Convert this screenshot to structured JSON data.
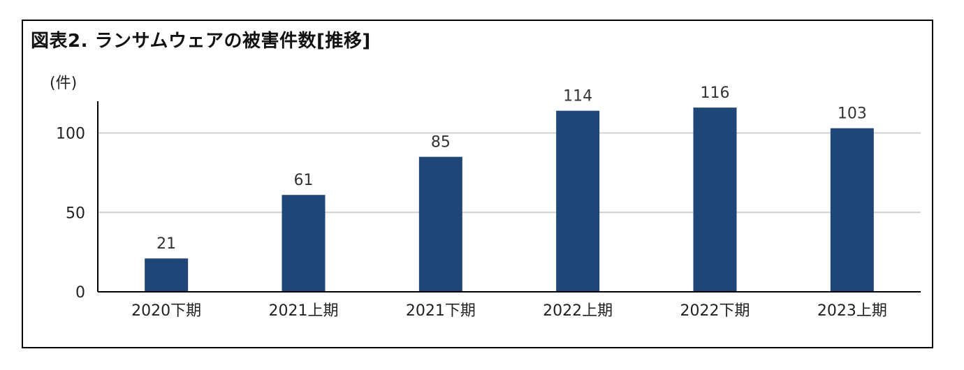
{
  "chart_data": {
    "type": "bar",
    "title": "図表2. ランサムウェアの被害件数[推移]",
    "ylabel": "(件)",
    "xlabel": "",
    "categories": [
      "2020下期",
      "2021上期",
      "2021下期",
      "2022上期",
      "2022下期",
      "2023上期"
    ],
    "values": [
      21,
      61,
      85,
      114,
      116,
      103
    ],
    "ylim": [
      0,
      120
    ],
    "yticks": [
      0,
      50,
      100
    ],
    "grid": true,
    "bar_color": "#1f4677",
    "data_labels": true
  }
}
